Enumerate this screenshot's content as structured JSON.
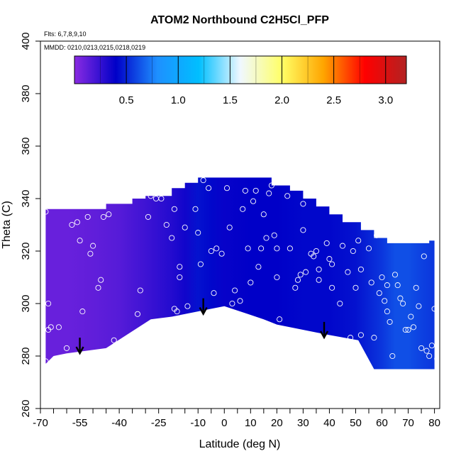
{
  "chart_data": {
    "type": "heatmap",
    "title": "ATOM2 Northbound C2H5Cl_PFP",
    "notes": [
      "Flts: 6,7,8,9,10",
      "MMDD: 0210,0213,0215,0218,0219"
    ],
    "xlabel": "Latitude (deg N)",
    "ylabel": "Theta (C)",
    "xlim": [
      -70,
      82
    ],
    "ylim": [
      260,
      400
    ],
    "xticks": [
      -70,
      -55,
      -40,
      -25,
      -10,
      0,
      10,
      20,
      30,
      40,
      50,
      60,
      70,
      80
    ],
    "xtick_labels": [
      "-70",
      "-55",
      "-40",
      "-25",
      "-10",
      "0",
      "10",
      "20",
      "30",
      "40",
      "50",
      "60",
      "70",
      "80"
    ],
    "xminor_ticks": [
      -65,
      -60,
      -50,
      -45,
      -35,
      -30,
      -20,
      -15,
      -5,
      5,
      15,
      25,
      35,
      45,
      55,
      65,
      75
    ],
    "yticks": [
      260,
      280,
      300,
      320,
      340,
      360,
      380,
      400
    ],
    "ytick_labels": [
      "260",
      "280",
      "300",
      "320",
      "340",
      "360",
      "380",
      "400"
    ],
    "colorbar": {
      "range": [
        0,
        3.2
      ],
      "ticks": [
        0.5,
        1.0,
        1.5,
        2.0,
        2.5,
        3.0
      ],
      "tick_labels": [
        "0.5",
        "1.0",
        "1.5",
        "2.0",
        "2.5",
        "3.0"
      ],
      "colors": [
        "#8a2be2",
        "#0000c8",
        "#1e90ff",
        "#00bfff",
        "#f0f8ff",
        "#ffff66",
        "#ffa500",
        "#ff0000",
        "#b22222"
      ],
      "placement": "top inside plot"
    },
    "field": {
      "lat_nodes": [
        -68,
        -60,
        -50,
        -40,
        -30,
        -20,
        -15,
        -10,
        -5,
        0,
        10,
        20,
        30,
        40,
        50,
        60,
        65,
        70,
        75,
        80
      ],
      "values_by_lat": [
        0.1,
        0.1,
        0.12,
        0.15,
        0.22,
        0.3,
        0.35,
        0.45,
        0.42,
        0.38,
        0.4,
        0.4,
        0.42,
        0.42,
        0.45,
        0.55,
        0.62,
        0.62,
        0.58,
        0.55
      ],
      "top_boundary": [
        [
          -68,
          336
        ],
        [
          -45,
          336
        ],
        [
          -45,
          338
        ],
        [
          -35,
          338
        ],
        [
          -35,
          340
        ],
        [
          -30,
          340
        ],
        [
          -30,
          341
        ],
        [
          -20,
          341
        ],
        [
          -20,
          344
        ],
        [
          -15,
          344
        ],
        [
          -15,
          346
        ],
        [
          -10,
          346
        ],
        [
          -10,
          348
        ],
        [
          18,
          348
        ],
        [
          18,
          345
        ],
        [
          25,
          345
        ],
        [
          25,
          343
        ],
        [
          30,
          343
        ],
        [
          30,
          340
        ],
        [
          35,
          340
        ],
        [
          35,
          337
        ],
        [
          40,
          337
        ],
        [
          40,
          334
        ],
        [
          45,
          334
        ],
        [
          45,
          331
        ],
        [
          52,
          331
        ],
        [
          52,
          328
        ],
        [
          57,
          328
        ],
        [
          57,
          325
        ],
        [
          62,
          325
        ],
        [
          62,
          323
        ],
        [
          78,
          323
        ],
        [
          78,
          324
        ],
        [
          80,
          324
        ]
      ],
      "bottom_boundary": [
        [
          80,
          275
        ],
        [
          57,
          275
        ],
        [
          51,
          286
        ],
        [
          40,
          288
        ],
        [
          35,
          289
        ],
        [
          20,
          292
        ],
        [
          15,
          294
        ],
        [
          9,
          296
        ],
        [
          0,
          299
        ],
        [
          -5,
          298
        ],
        [
          -10,
          297
        ],
        [
          -20,
          295
        ],
        [
          -28,
          294
        ],
        [
          -45,
          283
        ],
        [
          -60,
          281
        ],
        [
          -65,
          280
        ],
        [
          -68,
          277
        ]
      ]
    },
    "observations": [
      [
        -68,
        335
      ],
      [
        -67,
        300
      ],
      [
        -67,
        290
      ],
      [
        -66,
        291
      ],
      [
        -68,
        278
      ],
      [
        -63,
        291
      ],
      [
        -60,
        283
      ],
      [
        -58,
        330
      ],
      [
        -56,
        331
      ],
      [
        -55,
        324
      ],
      [
        -54,
        297
      ],
      [
        -52,
        333
      ],
      [
        -51,
        319
      ],
      [
        -50,
        322
      ],
      [
        -48,
        306
      ],
      [
        -47,
        309
      ],
      [
        -46,
        333
      ],
      [
        -44,
        334
      ],
      [
        -42,
        286
      ],
      [
        -40,
        340
      ],
      [
        -33,
        296
      ],
      [
        -32,
        305
      ],
      [
        -29,
        333
      ],
      [
        -28,
        341
      ],
      [
        -26,
        340
      ],
      [
        -24,
        340
      ],
      [
        -22,
        330
      ],
      [
        -20,
        325
      ],
      [
        -19,
        336
      ],
      [
        -19,
        298
      ],
      [
        -18,
        297
      ],
      [
        -17,
        314
      ],
      [
        -17,
        310
      ],
      [
        -15,
        329
      ],
      [
        -14,
        299
      ],
      [
        -11,
        336
      ],
      [
        -10,
        327
      ],
      [
        -9,
        315
      ],
      [
        -8,
        347
      ],
      [
        -6,
        344
      ],
      [
        -5,
        320
      ],
      [
        -4,
        304
      ],
      [
        -3,
        321
      ],
      [
        -2,
        296
      ],
      [
        -1,
        319
      ],
      [
        1,
        344
      ],
      [
        2,
        329
      ],
      [
        3,
        300
      ],
      [
        4,
        305
      ],
      [
        6,
        301
      ],
      [
        7,
        336
      ],
      [
        8,
        343
      ],
      [
        9,
        321
      ],
      [
        10,
        308
      ],
      [
        11,
        339
      ],
      [
        12,
        343
      ],
      [
        13,
        314
      ],
      [
        14,
        321
      ],
      [
        15,
        334
      ],
      [
        16,
        325
      ],
      [
        17,
        342
      ],
      [
        18,
        345
      ],
      [
        19,
        326
      ],
      [
        20,
        321
      ],
      [
        20,
        310
      ],
      [
        21,
        294
      ],
      [
        24,
        341
      ],
      [
        25,
        321
      ],
      [
        27,
        306
      ],
      [
        28,
        309
      ],
      [
        29,
        311
      ],
      [
        30,
        328
      ],
      [
        30,
        338
      ],
      [
        31,
        312
      ],
      [
        33,
        319
      ],
      [
        34,
        318
      ],
      [
        35,
        320
      ],
      [
        36,
        309
      ],
      [
        36,
        313
      ],
      [
        38,
        344
      ],
      [
        39,
        323
      ],
      [
        40,
        317
      ],
      [
        41,
        315
      ],
      [
        41,
        306
      ],
      [
        44,
        300
      ],
      [
        45,
        322
      ],
      [
        47,
        312
      ],
      [
        48,
        287
      ],
      [
        49,
        320
      ],
      [
        50,
        306
      ],
      [
        51,
        324
      ],
      [
        52,
        313
      ],
      [
        52,
        288
      ],
      [
        55,
        321
      ],
      [
        56,
        308
      ],
      [
        57,
        287
      ],
      [
        58,
        326
      ],
      [
        59,
        304
      ],
      [
        60,
        310
      ],
      [
        61,
        301
      ],
      [
        62,
        307
      ],
      [
        62,
        297
      ],
      [
        63,
        293
      ],
      [
        64,
        280
      ],
      [
        65,
        311
      ],
      [
        66,
        307
      ],
      [
        67,
        302
      ],
      [
        68,
        300
      ],
      [
        69,
        290
      ],
      [
        70,
        290
      ],
      [
        71,
        295
      ],
      [
        72,
        291
      ],
      [
        73,
        306
      ],
      [
        74,
        299
      ],
      [
        75,
        283
      ],
      [
        76,
        318
      ],
      [
        77,
        282
      ],
      [
        78,
        280
      ],
      [
        79,
        284
      ],
      [
        80,
        298
      ],
      [
        81,
        279
      ],
      [
        82,
        323
      ]
    ],
    "arrows": [
      [
        -55,
        287
      ],
      [
        -8,
        302
      ],
      [
        38,
        293
      ]
    ]
  }
}
